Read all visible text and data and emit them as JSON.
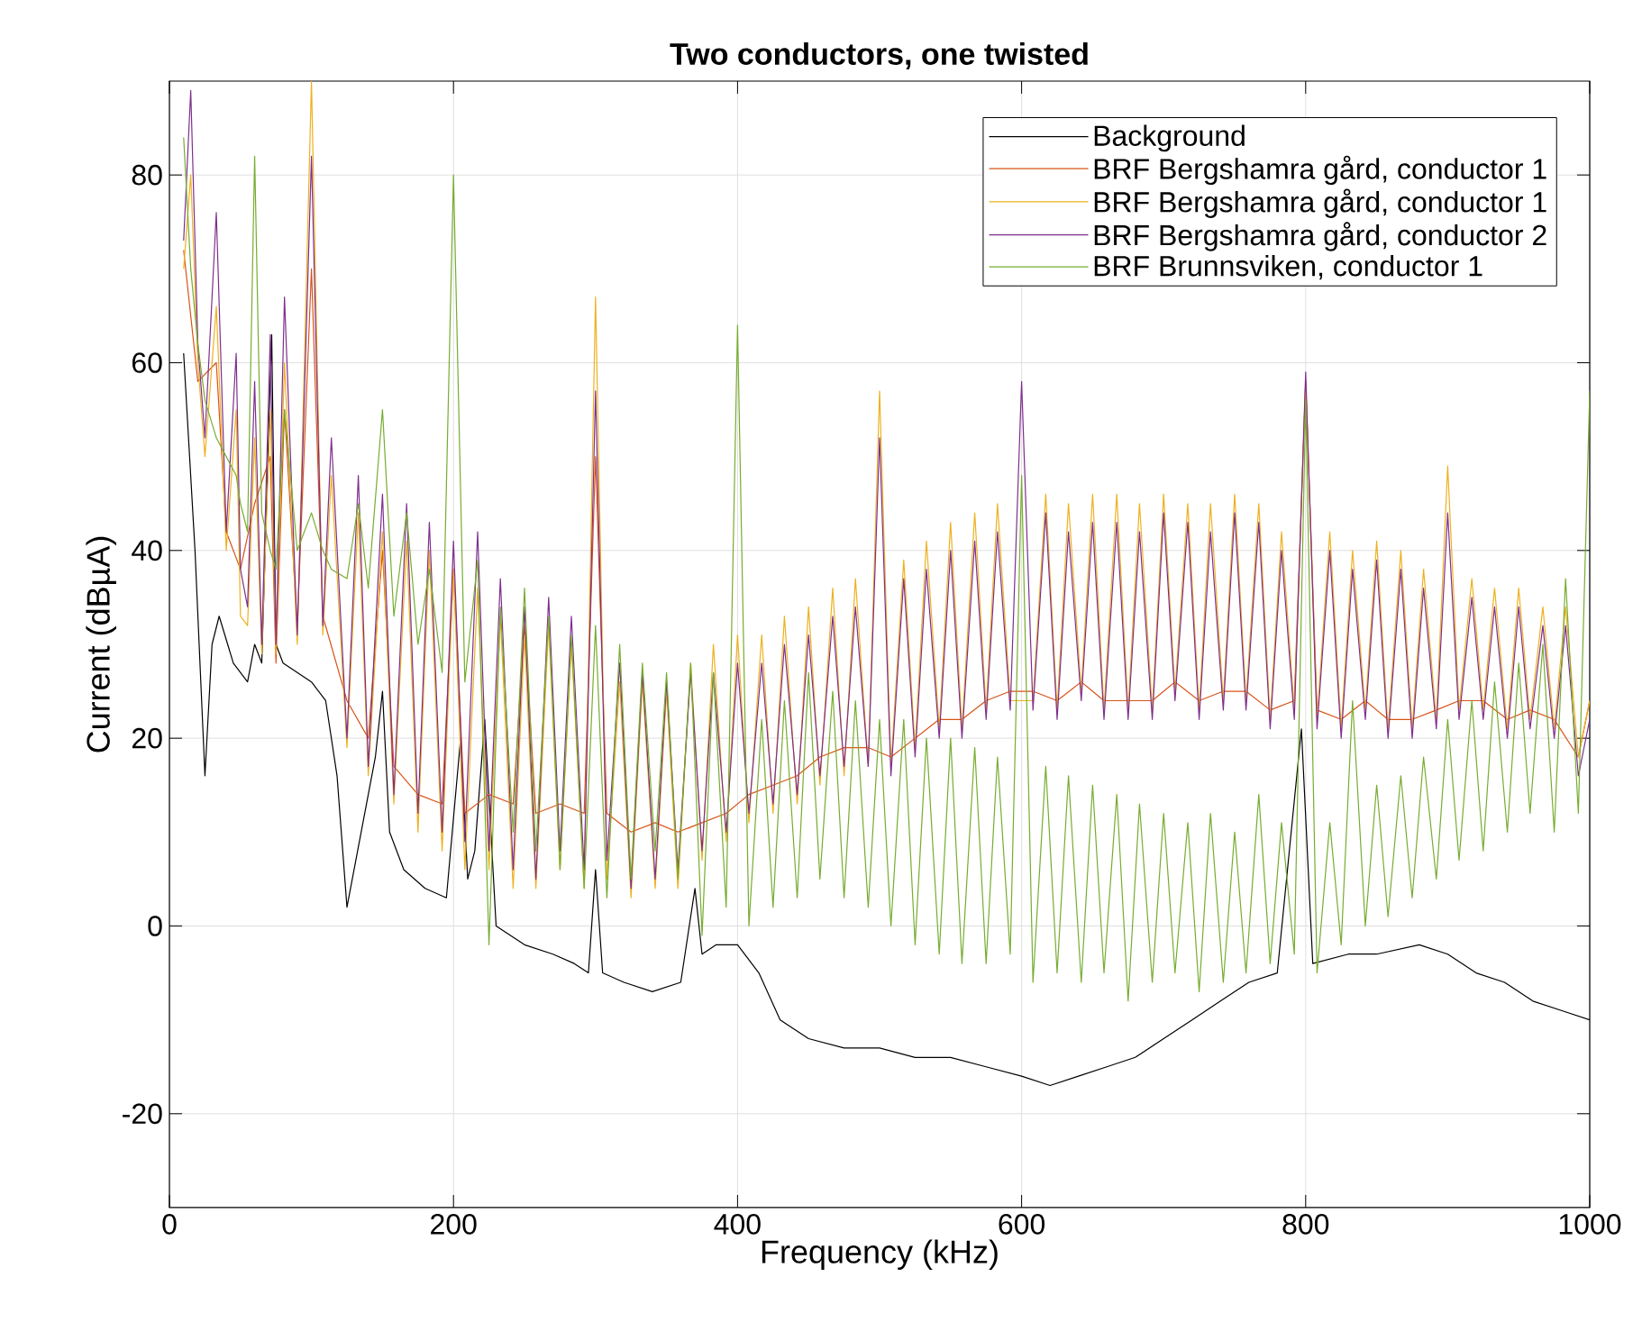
{
  "chart_data": {
    "type": "line",
    "title": "Two conductors, one twisted",
    "xlabel": "Frequency (kHz)",
    "ylabel": "Current (dBµA)",
    "xlim": [
      0,
      1000
    ],
    "ylim": [
      -30,
      90
    ],
    "xticks": [
      0,
      200,
      400,
      600,
      800,
      1000
    ],
    "yticks": [
      -20,
      0,
      20,
      40,
      60,
      80
    ],
    "grid": true,
    "legend": "top right",
    "series": [
      {
        "name": "Background",
        "color": "#000000",
        "x": [
          10,
          18,
          25,
          30,
          35,
          45,
          55,
          60,
          65,
          72,
          75,
          80,
          90,
          100,
          110,
          118,
          125,
          135,
          145,
          150,
          155,
          165,
          180,
          195,
          205,
          210,
          215,
          222,
          230,
          250,
          270,
          285,
          295,
          300,
          305,
          320,
          340,
          360,
          370,
          375,
          385,
          400,
          415,
          430,
          450,
          475,
          500,
          525,
          550,
          575,
          600,
          620,
          640,
          660,
          680,
          700,
          720,
          740,
          760,
          780,
          797,
          805,
          830,
          850,
          880,
          900,
          920,
          940,
          960,
          980,
          1000
        ],
        "values": [
          61,
          40,
          16,
          30,
          33,
          28,
          26,
          30,
          28,
          63,
          30,
          28,
          27,
          26,
          24,
          16,
          2,
          10,
          18,
          25,
          10,
          6,
          4,
          3,
          20,
          5,
          8,
          22,
          0,
          -2,
          -3,
          -4,
          -5,
          6,
          -5,
          -6,
          -7,
          -6,
          4,
          -3,
          -2,
          -2,
          -5,
          -10,
          -12,
          -13,
          -13,
          -14,
          -14,
          -15,
          -16,
          -17,
          -16,
          -15,
          -14,
          -12,
          -10,
          -8,
          -6,
          -5,
          21,
          -4,
          -3,
          -3,
          -2,
          -3,
          -5,
          -6,
          -8,
          -9,
          -10
        ]
      },
      {
        "name": "BRF Bergshamra gård, conductor 1",
        "color": "#d95319",
        "x": [
          10,
          20,
          33,
          40,
          50,
          60,
          71,
          75,
          81,
          90,
          100,
          108,
          125,
          140,
          150,
          158,
          175,
          192,
          200,
          208,
          225,
          242,
          250,
          258,
          275,
          292,
          300,
          308,
          325,
          342,
          358,
          375,
          392,
          408,
          425,
          442,
          458,
          475,
          492,
          508,
          525,
          542,
          558,
          575,
          592,
          608,
          625,
          642,
          658,
          675,
          692,
          708,
          725,
          742,
          758,
          775,
          792,
          800,
          808,
          825,
          842,
          858,
          875,
          892,
          908,
          925,
          942,
          958,
          975,
          992,
          1000
        ],
        "values": [
          72,
          58,
          60,
          42,
          38,
          45,
          50,
          28,
          55,
          32,
          70,
          33,
          24,
          20,
          40,
          17,
          14,
          13,
          38,
          12,
          14,
          13,
          32,
          12,
          13,
          12,
          50,
          12,
          10,
          11,
          10,
          11,
          12,
          14,
          15,
          16,
          18,
          19,
          19,
          18,
          20,
          22,
          22,
          24,
          25,
          25,
          24,
          26,
          24,
          24,
          24,
          26,
          24,
          25,
          25,
          23,
          24,
          58,
          23,
          22,
          24,
          22,
          22,
          23,
          24,
          24,
          22,
          23,
          22,
          18,
          24
        ]
      },
      {
        "name": "BRF Bergshamra gård, conductor 1",
        "color": "#edb120",
        "x": [
          10,
          15,
          20,
          25,
          33,
          40,
          47,
          50,
          55,
          60,
          65,
          71,
          75,
          81,
          90,
          100,
          108,
          114,
          125,
          133,
          140,
          150,
          158,
          167,
          175,
          183,
          192,
          200,
          208,
          217,
          225,
          233,
          242,
          250,
          258,
          267,
          275,
          283,
          292,
          300,
          308,
          317,
          325,
          333,
          342,
          350,
          358,
          367,
          375,
          383,
          392,
          400,
          408,
          417,
          425,
          433,
          442,
          450,
          458,
          467,
          475,
          483,
          492,
          500,
          508,
          517,
          525,
          533,
          542,
          550,
          558,
          567,
          575,
          583,
          592,
          600,
          608,
          617,
          625,
          633,
          642,
          650,
          658,
          667,
          675,
          683,
          692,
          700,
          708,
          717,
          725,
          733,
          742,
          750,
          758,
          767,
          775,
          783,
          792,
          800,
          808,
          817,
          825,
          833,
          842,
          850,
          858,
          867,
          875,
          883,
          892,
          900,
          908,
          917,
          925,
          933,
          942,
          950,
          958,
          967,
          975,
          983,
          992,
          1000
        ],
        "values": [
          70,
          80,
          60,
          50,
          66,
          40,
          55,
          33,
          32,
          52,
          29,
          55,
          29,
          60,
          30,
          90,
          31,
          48,
          19,
          44,
          16,
          42,
          13,
          41,
          10,
          40,
          8,
          38,
          6,
          36,
          6,
          33,
          4,
          31,
          4,
          32,
          6,
          30,
          4,
          67,
          5,
          26,
          3,
          26,
          4,
          25,
          4,
          28,
          7,
          30,
          9,
          31,
          11,
          31,
          12,
          33,
          13,
          34,
          15,
          36,
          16,
          37,
          17,
          57,
          17,
          39,
          19,
          41,
          21,
          43,
          21,
          44,
          23,
          45,
          24,
          null,
          24,
          46,
          23,
          45,
          25,
          46,
          23,
          46,
          23,
          45,
          23,
          46,
          25,
          45,
          23,
          45,
          24,
          46,
          24,
          45,
          22,
          42,
          23,
          58,
          22,
          42,
          21,
          40,
          23,
          41,
          21,
          40,
          21,
          38,
          22,
          49,
          23,
          37,
          23,
          36,
          21,
          36,
          22,
          34,
          21,
          34,
          18,
          24
        ]
      },
      {
        "name": "BRF Bergshamra gård, conductor 2",
        "color": "#7e2f8e",
        "x": [
          10,
          15,
          20,
          25,
          33,
          40,
          47,
          50,
          55,
          60,
          65,
          71,
          75,
          81,
          90,
          100,
          108,
          114,
          125,
          133,
          140,
          150,
          158,
          167,
          175,
          183,
          192,
          200,
          208,
          217,
          225,
          233,
          242,
          250,
          258,
          267,
          275,
          283,
          292,
          300,
          308,
          317,
          325,
          333,
          342,
          350,
          358,
          367,
          375,
          383,
          392,
          400,
          408,
          417,
          425,
          433,
          442,
          450,
          458,
          467,
          475,
          483,
          492,
          500,
          508,
          517,
          525,
          533,
          542,
          550,
          558,
          567,
          575,
          583,
          592,
          600,
          608,
          617,
          625,
          633,
          642,
          650,
          658,
          667,
          675,
          683,
          692,
          700,
          708,
          717,
          725,
          733,
          742,
          750,
          758,
          767,
          775,
          783,
          792,
          800,
          808,
          817,
          825,
          833,
          842,
          850,
          858,
          867,
          875,
          883,
          892,
          900,
          908,
          917,
          925,
          933,
          942,
          950,
          958,
          967,
          975,
          983,
          992,
          1000
        ],
        "values": [
          73,
          89,
          62,
          52,
          76,
          42,
          61,
          38,
          34,
          58,
          30,
          63,
          30,
          67,
          31,
          82,
          32,
          52,
          20,
          48,
          17,
          46,
          14,
          45,
          12,
          43,
          10,
          41,
          9,
          42,
          8,
          37,
          6,
          34,
          5,
          35,
          8,
          33,
          6,
          57,
          7,
          28,
          4,
          27,
          5,
          26,
          6,
          27,
          8,
          27,
          10,
          28,
          12,
          28,
          13,
          30,
          14,
          31,
          16,
          33,
          17,
          34,
          17,
          52,
          16,
          37,
          18,
          38,
          20,
          40,
          20,
          41,
          22,
          42,
          23,
          58,
          23,
          44,
          22,
          42,
          24,
          43,
          22,
          43,
          22,
          42,
          22,
          44,
          24,
          43,
          22,
          42,
          23,
          44,
          23,
          43,
          21,
          40,
          22,
          59,
          21,
          40,
          20,
          38,
          22,
          39,
          20,
          38,
          20,
          36,
          21,
          44,
          22,
          35,
          22,
          34,
          20,
          34,
          21,
          32,
          20,
          32,
          16,
          22
        ]
      },
      {
        "name": "BRF Brunnsviken, conductor 1",
        "color": "#77ac30",
        "x": [
          10,
          15,
          20,
          25,
          33,
          40,
          47,
          50,
          55,
          60,
          65,
          71,
          75,
          81,
          90,
          100,
          108,
          114,
          125,
          133,
          140,
          150,
          158,
          167,
          175,
          183,
          192,
          200,
          208,
          217,
          225,
          233,
          242,
          250,
          258,
          267,
          275,
          283,
          292,
          300,
          308,
          317,
          325,
          333,
          342,
          350,
          358,
          367,
          375,
          383,
          392,
          400,
          408,
          417,
          425,
          433,
          442,
          450,
          458,
          467,
          475,
          483,
          492,
          500,
          508,
          517,
          525,
          533,
          542,
          550,
          558,
          567,
          575,
          583,
          592,
          600,
          608,
          617,
          625,
          633,
          642,
          650,
          658,
          667,
          675,
          683,
          692,
          700,
          708,
          717,
          725,
          733,
          742,
          750,
          758,
          767,
          775,
          783,
          792,
          800,
          808,
          817,
          825,
          833,
          842,
          850,
          858,
          867,
          875,
          883,
          892,
          900,
          908,
          917,
          925,
          933,
          942,
          950,
          958,
          967,
          975,
          983,
          992,
          1000
        ],
        "values": [
          84,
          70,
          62,
          56,
          52,
          50,
          48,
          45,
          42,
          82,
          44,
          40,
          38,
          55,
          40,
          44,
          40,
          38,
          37,
          45,
          36,
          55,
          33,
          44,
          30,
          38,
          27,
          80,
          26,
          39,
          -2,
          34,
          10,
          36,
          8,
          33,
          6,
          31,
          4,
          32,
          3,
          30,
          5,
          28,
          8,
          27,
          5,
          28,
          -1,
          27,
          2,
          64,
          0,
          22,
          2,
          24,
          3,
          27,
          5,
          25,
          3,
          24,
          2,
          22,
          0,
          22,
          -2,
          20,
          -3,
          20,
          -4,
          19,
          -4,
          18,
          -3,
          48,
          -6,
          17,
          -5,
          16,
          -6,
          15,
          -5,
          14,
          -8,
          13,
          -6,
          12,
          -5,
          11,
          -7,
          12,
          -6,
          10,
          -5,
          14,
          -4,
          11,
          -3,
          56,
          -5,
          11,
          -2,
          24,
          0,
          15,
          1,
          16,
          3,
          18,
          5,
          22,
          7,
          24,
          8,
          26,
          10,
          28,
          12,
          30,
          10,
          37,
          12,
          57
        ]
      }
    ]
  }
}
